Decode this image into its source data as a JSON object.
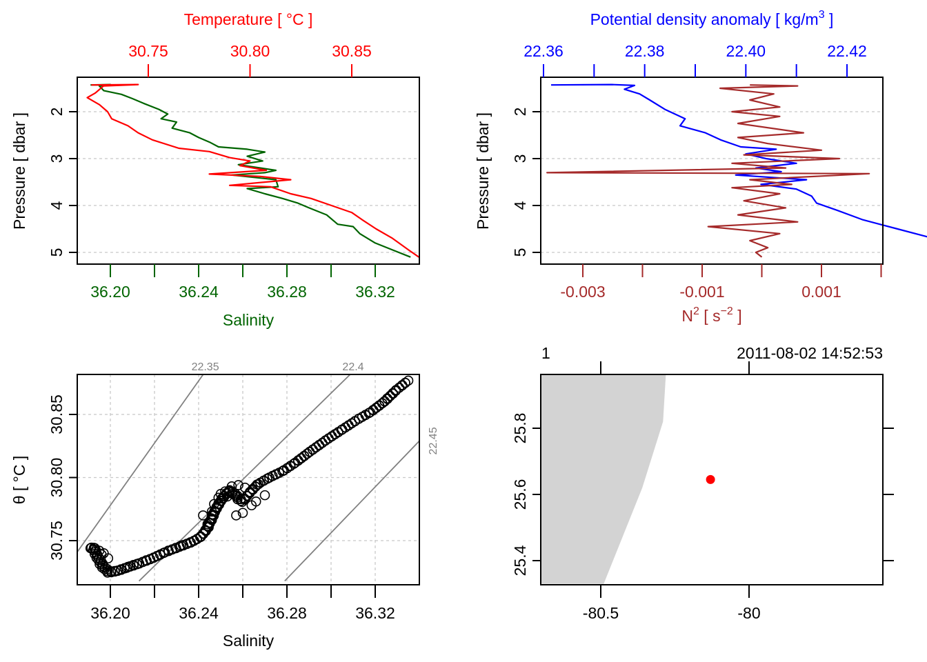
{
  "chart_data": [
    {
      "id": "profile-ts",
      "type": "line",
      "ylabel": "Pressure [ dbar ]",
      "ylim": [
        1.3,
        5.2
      ],
      "y_reversed": true,
      "yticks": [
        2,
        3,
        4,
        5
      ],
      "grid": true,
      "x_bottom": {
        "label": "Salinity",
        "color": "#006400",
        "lim": [
          36.185,
          36.34
        ],
        "ticks": [
          36.2,
          36.22,
          36.24,
          36.26,
          36.28,
          36.3,
          36.32
        ],
        "tick_labels": [
          "36.20",
          "",
          "36.24",
          "",
          "36.28",
          "",
          "36.32"
        ]
      },
      "x_top": {
        "label": "Temperature [ °C ]",
        "color": "#ff0000",
        "lim": [
          30.718,
          30.886
        ],
        "ticks": [
          30.75,
          30.8,
          30.85
        ],
        "tick_labels": [
          "30.75",
          "30.80",
          "30.85"
        ]
      },
      "series": [
        {
          "name": "Salinity",
          "axis": "bottom",
          "color": "#006400",
          "points": [
            [
              36.191,
              1.43
            ],
            [
              36.2,
              1.42
            ],
            [
              36.195,
              1.45
            ],
            [
              36.197,
              1.55
            ],
            [
              36.205,
              1.63
            ],
            [
              36.21,
              1.72
            ],
            [
              36.215,
              1.82
            ],
            [
              36.222,
              1.95
            ],
            [
              36.226,
              2.05
            ],
            [
              36.223,
              2.15
            ],
            [
              36.23,
              2.22
            ],
            [
              36.228,
              2.35
            ],
            [
              36.236,
              2.45
            ],
            [
              36.24,
              2.55
            ],
            [
              36.245,
              2.65
            ],
            [
              36.249,
              2.75
            ],
            [
              36.262,
              2.8
            ],
            [
              36.27,
              2.86
            ],
            [
              36.262,
              2.95
            ],
            [
              36.269,
              3.05
            ],
            [
              36.258,
              3.13
            ],
            [
              36.275,
              3.25
            ],
            [
              36.27,
              3.3
            ],
            [
              36.255,
              3.35
            ],
            [
              36.275,
              3.45
            ],
            [
              36.276,
              3.6
            ],
            [
              36.262,
              3.64
            ],
            [
              36.27,
              3.75
            ],
            [
              36.278,
              3.85
            ],
            [
              36.285,
              3.95
            ],
            [
              36.29,
              4.05
            ],
            [
              36.298,
              4.2
            ],
            [
              36.303,
              4.4
            ],
            [
              36.31,
              4.45
            ],
            [
              36.313,
              4.6
            ],
            [
              36.32,
              4.8
            ],
            [
              36.328,
              4.95
            ],
            [
              36.336,
              5.1
            ]
          ]
        },
        {
          "name": "Temperature",
          "axis": "top",
          "color": "#ff0000",
          "points": [
            [
              30.722,
              1.43
            ],
            [
              30.745,
              1.42
            ],
            [
              30.728,
              1.45
            ],
            [
              30.724,
              1.6
            ],
            [
              30.72,
              1.7
            ],
            [
              30.726,
              1.85
            ],
            [
              30.73,
              2.0
            ],
            [
              30.732,
              2.15
            ],
            [
              30.74,
              2.3
            ],
            [
              30.745,
              2.45
            ],
            [
              30.752,
              2.6
            ],
            [
              30.765,
              2.78
            ],
            [
              30.78,
              2.85
            ],
            [
              30.79,
              2.98
            ],
            [
              30.8,
              3.05
            ],
            [
              30.795,
              3.15
            ],
            [
              30.808,
              3.25
            ],
            [
              30.78,
              3.33
            ],
            [
              30.805,
              3.38
            ],
            [
              30.82,
              3.45
            ],
            [
              30.79,
              3.57
            ],
            [
              30.81,
              3.6
            ],
            [
              30.82,
              3.75
            ],
            [
              30.83,
              3.85
            ],
            [
              30.84,
              4.0
            ],
            [
              30.85,
              4.15
            ],
            [
              30.855,
              4.3
            ],
            [
              30.862,
              4.5
            ],
            [
              30.87,
              4.7
            ],
            [
              30.878,
              4.95
            ],
            [
              30.883,
              5.1
            ]
          ]
        }
      ]
    },
    {
      "id": "profile-density-n2",
      "type": "line",
      "ylabel": "Pressure [ dbar ]",
      "ylim": [
        1.3,
        5.2
      ],
      "y_reversed": true,
      "yticks": [
        2,
        3,
        4,
        5
      ],
      "grid": true,
      "x_top": {
        "label": "Potential density anomaly [ kg/m",
        "label_sup": "3",
        "label_end": " ]",
        "color": "#0000ff",
        "lim": [
          22.3595,
          22.4271
        ],
        "ticks": [
          22.36,
          22.37,
          22.38,
          22.39,
          22.4,
          22.41,
          22.42
        ],
        "tick_labels": [
          "22.36",
          "",
          "22.38",
          "",
          "22.40",
          "",
          "22.42"
        ]
      },
      "x_bottom": {
        "label": "N",
        "label_sup": "2",
        "label_end": " [ s",
        "label_sup2": "−2",
        "label_end2": " ]",
        "color": "#a52a2a",
        "lim": [
          -0.00366,
          0.00206
        ],
        "ticks": [
          -0.003,
          -0.002,
          -0.001,
          0.0,
          0.001,
          0.002
        ],
        "tick_labels": [
          "-0.003",
          "",
          "-0.001",
          "",
          "0.001",
          ""
        ]
      },
      "series": [
        {
          "name": "Potential density anomaly",
          "axis": "top",
          "color": "#0000ff",
          "points": [
            [
              22.3615,
              1.43
            ],
            [
              22.3735,
              1.42
            ],
            [
              22.378,
              1.44
            ],
            [
              22.376,
              1.52
            ],
            [
              22.379,
              1.62
            ],
            [
              22.381,
              1.75
            ],
            [
              22.384,
              1.95
            ],
            [
              22.388,
              2.15
            ],
            [
              22.387,
              2.3
            ],
            [
              22.392,
              2.45
            ],
            [
              22.395,
              2.6
            ],
            [
              22.399,
              2.75
            ],
            [
              22.406,
              2.8
            ],
            [
              22.4,
              2.9
            ],
            [
              22.404,
              3.0
            ],
            [
              22.41,
              3.1
            ],
            [
              22.402,
              3.2
            ],
            [
              22.407,
              3.28
            ],
            [
              22.398,
              3.35
            ],
            [
              22.412,
              3.45
            ],
            [
              22.403,
              3.55
            ],
            [
              22.41,
              3.65
            ],
            [
              22.413,
              3.8
            ],
            [
              22.414,
              3.95
            ],
            [
              22.418,
              4.1
            ],
            [
              22.423,
              4.3
            ],
            [
              22.43,
              4.5
            ],
            [
              22.437,
              4.7
            ],
            [
              22.443,
              4.9
            ],
            [
              22.449,
              5.1
            ]
          ]
        },
        {
          "name": "N2",
          "axis": "bottom",
          "color": "#a52a2a",
          "points": [
            [
              -0.0002,
              1.43
            ],
            [
              0.0006,
              1.45
            ],
            [
              -0.0007,
              1.5
            ],
            [
              0.0002,
              1.62
            ],
            [
              -0.0002,
              1.75
            ],
            [
              0.0003,
              1.9
            ],
            [
              -0.0005,
              2.0
            ],
            [
              0.0003,
              2.1
            ],
            [
              -0.0004,
              2.25
            ],
            [
              0.0007,
              2.45
            ],
            [
              -0.0004,
              2.55
            ],
            [
              0.0001,
              2.68
            ],
            [
              0.001,
              2.82
            ],
            [
              -0.0003,
              2.92
            ],
            [
              0.0013,
              3.0
            ],
            [
              -0.0005,
              3.1
            ],
            [
              0.0004,
              3.2
            ],
            [
              -0.0036,
              3.3
            ],
            [
              0.0018,
              3.32
            ],
            [
              -0.0002,
              3.45
            ],
            [
              0.0005,
              3.55
            ],
            [
              -0.0005,
              3.62
            ],
            [
              0.0003,
              3.75
            ],
            [
              -0.0003,
              3.9
            ],
            [
              0.0004,
              4.05
            ],
            [
              -0.0004,
              4.2
            ],
            [
              0.0006,
              4.35
            ],
            [
              -0.0009,
              4.45
            ],
            [
              0.0003,
              4.6
            ],
            [
              -0.0002,
              4.75
            ],
            [
              0.0001,
              4.9
            ],
            [
              -0.0001,
              5.0
            ],
            [
              0.0,
              5.1
            ]
          ]
        }
      ]
    },
    {
      "id": "ts-diagram",
      "type": "scatter",
      "xlabel": "Salinity",
      "ylabel": "θ [ °C ]",
      "xlim": [
        36.185,
        36.34
      ],
      "ylim": [
        30.718,
        30.884
      ],
      "xticks": [
        36.2,
        36.22,
        36.24,
        36.26,
        36.28,
        36.3,
        36.32
      ],
      "xtick_labels": [
        "36.20",
        "",
        "36.24",
        "",
        "36.28",
        "",
        "36.32"
      ],
      "yticks": [
        30.75,
        30.8,
        30.85
      ],
      "ytick_labels": [
        "30.75",
        "30.80",
        "30.85"
      ],
      "grid": true,
      "marker": "open-circle",
      "isopycnals": [
        {
          "label": "22.35",
          "points": [
            [
              36.185,
              30.741
            ],
            [
              36.243,
              30.884
            ]
          ]
        },
        {
          "label": "22.4",
          "points": [
            [
              36.213,
              30.718
            ],
            [
              36.31,
              30.884
            ]
          ]
        },
        {
          "label": "22.45",
          "points": [
            [
              36.279,
              30.718
            ],
            [
              36.34,
              30.829
            ]
          ]
        }
      ],
      "trace": [
        [
          36.192,
          30.745
        ],
        [
          36.194,
          30.738
        ],
        [
          36.196,
          30.731
        ],
        [
          36.199,
          30.725
        ],
        [
          36.203,
          30.726
        ],
        [
          36.208,
          30.729
        ],
        [
          36.213,
          30.732
        ],
        [
          36.219,
          30.736
        ],
        [
          36.225,
          30.741
        ],
        [
          36.231,
          30.745
        ],
        [
          36.237,
          30.749
        ],
        [
          36.241,
          30.753
        ],
        [
          36.244,
          30.76
        ],
        [
          36.246,
          30.768
        ],
        [
          36.248,
          30.776
        ],
        [
          36.251,
          30.784
        ],
        [
          36.254,
          30.79
        ],
        [
          36.257,
          30.785
        ],
        [
          36.26,
          30.781
        ],
        [
          36.263,
          30.788
        ],
        [
          36.267,
          30.795
        ],
        [
          36.272,
          30.8
        ],
        [
          36.278,
          30.805
        ],
        [
          36.284,
          30.812
        ],
        [
          36.29,
          30.82
        ],
        [
          36.298,
          30.83
        ],
        [
          36.305,
          30.838
        ],
        [
          36.312,
          30.846
        ],
        [
          36.318,
          30.852
        ],
        [
          36.324,
          30.86
        ],
        [
          36.33,
          30.87
        ],
        [
          36.335,
          30.877
        ]
      ],
      "loose_points": [
        [
          36.191,
          30.744
        ],
        [
          36.193,
          30.744
        ],
        [
          36.195,
          30.742
        ],
        [
          36.197,
          30.74
        ],
        [
          36.199,
          30.736
        ],
        [
          36.196,
          30.739
        ],
        [
          36.232,
          30.746
        ],
        [
          36.238,
          30.75
        ],
        [
          36.244,
          30.763
        ],
        [
          36.247,
          30.779
        ],
        [
          36.249,
          30.784
        ],
        [
          36.25,
          30.787
        ],
        [
          36.252,
          30.789
        ],
        [
          36.255,
          30.793
        ],
        [
          36.258,
          30.794
        ],
        [
          36.261,
          30.792
        ],
        [
          36.257,
          30.77
        ],
        [
          36.26,
          30.772
        ],
        [
          36.264,
          30.778
        ],
        [
          36.266,
          30.781
        ],
        [
          36.27,
          30.786
        ],
        [
          36.253,
          30.785
        ],
        [
          36.246,
          30.773
        ],
        [
          36.242,
          30.77
        ]
      ]
    },
    {
      "id": "station-map",
      "type": "scatter",
      "xlim": [
        -80.7,
        -79.55
      ],
      "ylim": [
        25.33,
        25.97
      ],
      "xticks": [
        -80.5,
        -80.0
      ],
      "xtick_labels": [
        "-80.5",
        "-80"
      ],
      "yticks": [
        25.4,
        25.6,
        25.8
      ],
      "ytick_labels": [
        "25.4",
        "25.6",
        "25.8"
      ],
      "grid": false,
      "top_labels": {
        "left": "1",
        "right": "2011-08-02 14:52:53"
      },
      "land_color": "#d3d3d3",
      "coastline": [
        [
          -80.7,
          25.97
        ],
        [
          -80.28,
          25.97
        ],
        [
          -80.29,
          25.82
        ],
        [
          -80.36,
          25.62
        ],
        [
          -80.49,
          25.33
        ],
        [
          -80.7,
          25.33
        ]
      ],
      "station": {
        "lon": -80.13,
        "lat": 25.645,
        "color": "#ff0000"
      }
    }
  ]
}
